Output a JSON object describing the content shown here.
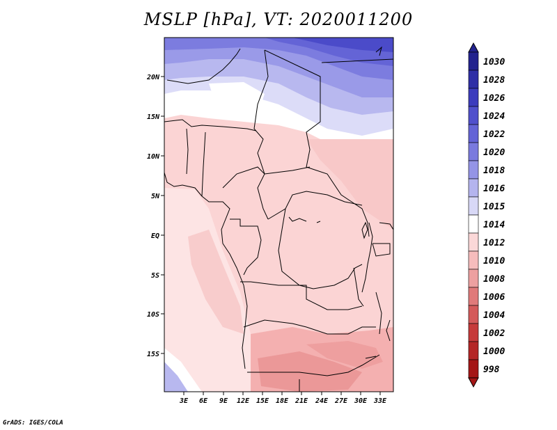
{
  "title": "MSLP [hPa], VT: 2020011200",
  "credit": "GrADS: IGES/COLA",
  "map": {
    "lat_labels": [
      "20N",
      "15N",
      "10N",
      "5N",
      "EQ",
      "5S",
      "10S",
      "15S"
    ],
    "lon_labels": [
      "3E",
      "6E",
      "9E",
      "12E",
      "15E",
      "18E",
      "21E",
      "24E",
      "27E",
      "30E",
      "33E"
    ]
  },
  "colorbar": {
    "labels": [
      "1030",
      "1028",
      "1026",
      "1024",
      "1022",
      "1020",
      "1018",
      "1016",
      "1015",
      "1014",
      "1012",
      "1010",
      "1008",
      "1006",
      "1004",
      "1002",
      "1000",
      "998"
    ],
    "colors": [
      "#23238e",
      "#2e2ea6",
      "#3c3cbd",
      "#5050cc",
      "#6464d6",
      "#7a7ade",
      "#9494e6",
      "#b4b4ee",
      "#d8d8f6",
      "#ffffff",
      "#fbd8d8",
      "#f6bcbc",
      "#eda0a0",
      "#e07a7a",
      "#d45a5a",
      "#c63a3a",
      "#b42626",
      "#a41616"
    ]
  }
}
